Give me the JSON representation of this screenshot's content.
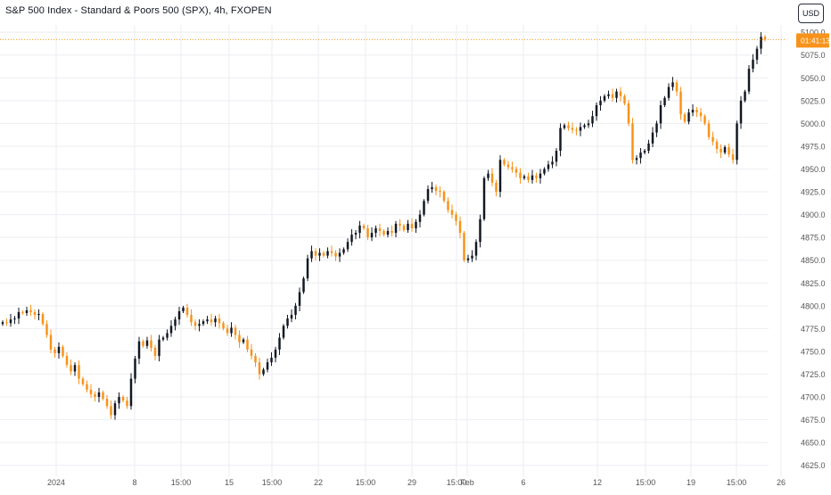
{
  "header": {
    "title": "S&P 500 Index - Standard & Poors 500 (SPX), 4h, FXOPEN",
    "currency_label": "USD"
  },
  "colors": {
    "up": "#131722",
    "down": "#f7931a",
    "price_line": "#f7931a",
    "grid": "#eceef2",
    "axis_text": "#555555"
  },
  "chart_data": {
    "type": "candlestick",
    "title": "S&P 500 Index - Standard & Poors 500 (SPX), 4h, FXOPEN",
    "ylim": [
      4612,
      5108
    ],
    "y_ticks": [
      4625,
      4650,
      4675,
      4700,
      4725,
      4750,
      4775,
      4800,
      4825,
      4850,
      4875,
      4900,
      4925,
      4950,
      4975,
      5000,
      5025,
      5050,
      5075,
      5100
    ],
    "x_ticks": [
      "2024",
      "8",
      "15:00",
      "15",
      "15:00",
      "22",
      "15:00",
      "29",
      "15:00",
      "Feb",
      "6",
      "12",
      "15:00",
      "19",
      "15:00",
      "26"
    ],
    "current_price": 5092,
    "countdown_label": "01:41:13",
    "grid": true,
    "series_closes": [
      4782,
      4781,
      4785,
      4786,
      4793,
      4792,
      4795,
      4793,
      4790,
      4791,
      4780,
      4768,
      4752,
      4748,
      4755,
      4745,
      4735,
      4728,
      4735,
      4720,
      4714,
      4708,
      4703,
      4700,
      4705,
      4698,
      4690,
      4680,
      4693,
      4700,
      4696,
      4690,
      4720,
      4742,
      4761,
      4756,
      4762,
      4754,
      4745,
      4763,
      4765,
      4770,
      4778,
      4785,
      4794,
      4798,
      4790,
      4782,
      4778,
      4780,
      4783,
      4785,
      4782,
      4786,
      4781,
      4775,
      4770,
      4776,
      4768,
      4760,
      4763,
      4752,
      4745,
      4738,
      4725,
      4730,
      4738,
      4743,
      4752,
      4765,
      4778,
      4786,
      4790,
      4800,
      4815,
      4830,
      4852,
      4860,
      4855,
      4858,
      4855,
      4860,
      4858,
      4854,
      4858,
      4862,
      4870,
      4878,
      4880,
      4888,
      4885,
      4875,
      4880,
      4885,
      4882,
      4878,
      4882,
      4880,
      4890,
      4888,
      4883,
      4890,
      4885,
      4892,
      4900,
      4915,
      4928,
      4930,
      4926,
      4925,
      4915,
      4905,
      4900,
      4893,
      4880,
      4850,
      4852,
      4855,
      4870,
      4895,
      4940,
      4945,
      4935,
      4925,
      4960,
      4955,
      4952,
      4950,
      4946,
      4940,
      4942,
      4938,
      4943,
      4940,
      4945,
      4950,
      4955,
      4958,
      4970,
      4995,
      4998,
      4995,
      4993,
      4992,
      4996,
      4998,
      5000,
      5008,
      5020,
      5025,
      5030,
      5032,
      5028,
      5035,
      5030,
      5022,
      5000,
      4960,
      4962,
      4968,
      4970,
      4978,
      4990,
      5000,
      5020,
      5028,
      5040,
      5045,
      5035,
      5010,
      5002,
      5012,
      5015,
      5012,
      5008,
      5000,
      4985,
      4980,
      4972,
      4968,
      4974,
      4966,
      4960,
      5000,
      5025,
      5035,
      5060,
      5070,
      5082,
      5095,
      5092
    ]
  }
}
